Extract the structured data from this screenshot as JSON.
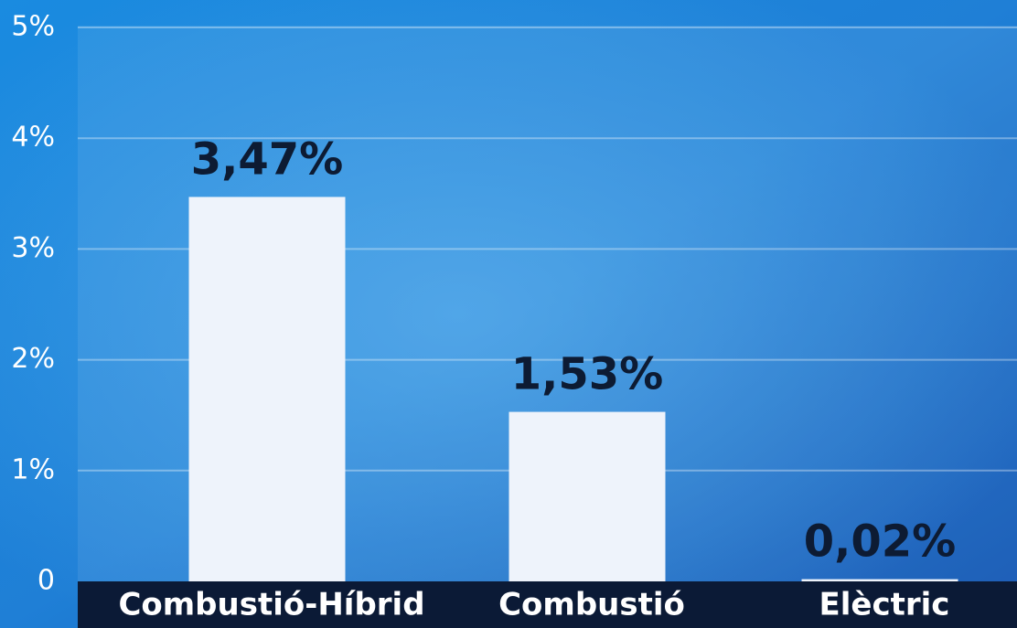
{
  "chart_data": {
    "type": "bar",
    "categories": [
      "Combustió-Híbrid",
      "Combustió",
      "Elèctric"
    ],
    "values": [
      3.47,
      1.53,
      0.02
    ],
    "value_labels": [
      "3,47%",
      "1,53%",
      "0,02%"
    ],
    "color": "#eef3fb",
    "ylim": [
      0,
      5
    ],
    "yticks": [
      0,
      {
        "value": 1,
        "label": "1%"
      },
      {
        "value": 2,
        "label": "2%"
      },
      {
        "value": 3,
        "label": "3%"
      },
      {
        "value": 4,
        "label": "4%"
      },
      {
        "value": 5,
        "label": "5%"
      }
    ],
    "grid": true
  }
}
